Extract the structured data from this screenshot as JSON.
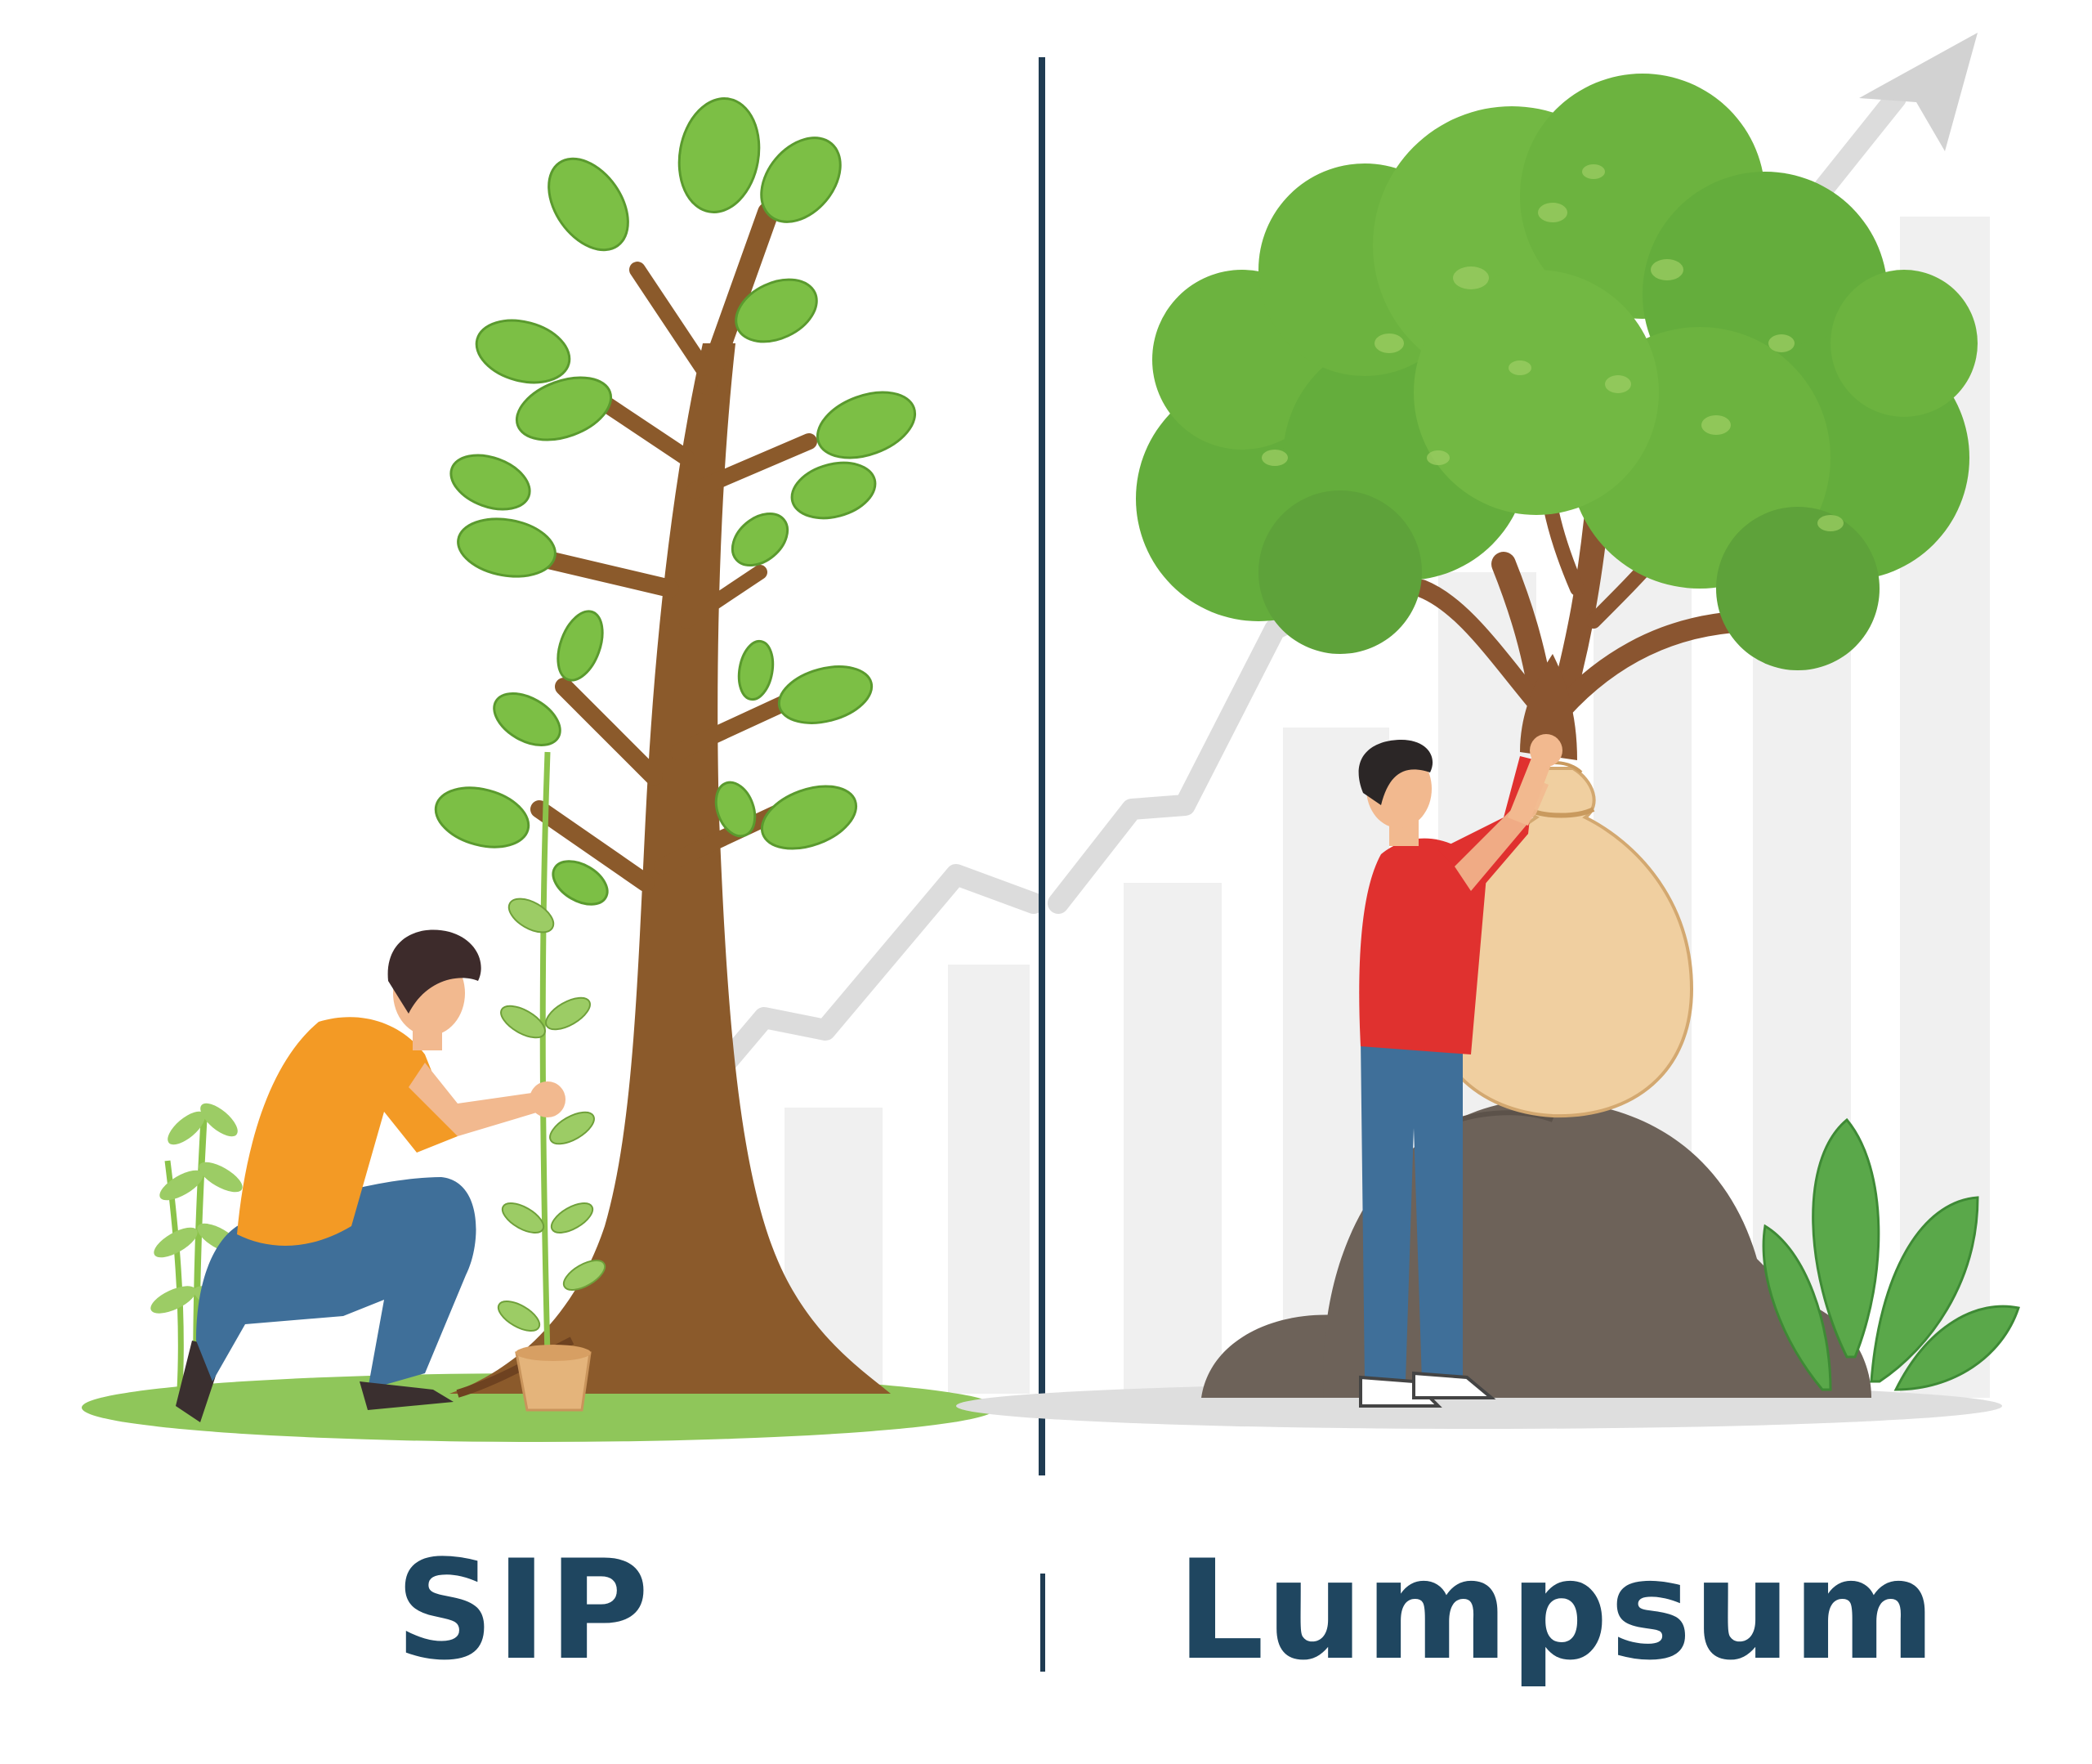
{
  "panels": {
    "left": {
      "label": "SIP"
    },
    "right": {
      "label": "Lumpsum"
    }
  },
  "colors": {
    "divider": "#1f3b52",
    "label": "#1f4660",
    "leaf": "#7cc242",
    "foliage": "#6cb33f",
    "trunk": "#8a5530",
    "shirt_orange": "#f39a25",
    "shirt_red": "#e0312f",
    "jeans": "#3f6f99",
    "sack": "#f0cfa0",
    "rock": "#6d6259",
    "bars": "#eeeeee",
    "growth_line": "#d8d8d8"
  },
  "icons": [
    "growth-arrow-icon"
  ]
}
